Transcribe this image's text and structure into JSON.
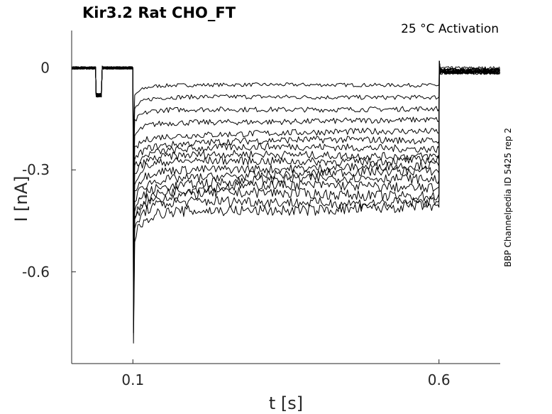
{
  "chart_data": {
    "type": "line",
    "title": "Kir3.2  Rat  CHO_FT",
    "annotation": "25 °C  Activation",
    "side_label": "BBP Channelpedia ID 5425 rep 2",
    "xlabel": "t [s]",
    "ylabel": "I [nA]",
    "xlim": [
      0.0,
      0.7
    ],
    "ylim": [
      -0.87,
      0.11
    ],
    "x_ticks": [
      0.1,
      0.6
    ],
    "x_tick_labels": [
      "0.1",
      "0.6"
    ],
    "y_ticks": [
      0,
      -0.3,
      -0.6
    ],
    "y_tick_labels": [
      "0",
      "-0.3",
      "-0.6"
    ],
    "grid": false,
    "legend": "none",
    "line_color": "#000000",
    "protocol": {
      "prepulse_start": 0.04,
      "prepulse_end": 0.05,
      "prepulse_current": -0.08,
      "step_start": 0.1,
      "step_end": 0.6
    },
    "series": [
      {
        "steady": -0.05,
        "peak": -0.22,
        "tail": 0.0
      },
      {
        "steady": -0.085,
        "peak": -0.27,
        "tail": -0.005
      },
      {
        "steady": -0.12,
        "peak": -0.31,
        "tail": -0.005
      },
      {
        "steady": -0.155,
        "peak": -0.36,
        "tail": -0.005
      },
      {
        "steady": -0.19,
        "peak": -0.4,
        "tail": -0.005
      },
      {
        "steady": -0.215,
        "peak": -0.44,
        "tail": -0.01
      },
      {
        "steady": -0.235,
        "peak": -0.48,
        "tail": -0.01
      },
      {
        "steady": -0.255,
        "peak": -0.52,
        "tail": -0.01
      },
      {
        "steady": -0.27,
        "peak": -0.56,
        "tail": -0.01
      },
      {
        "steady": -0.29,
        "peak": -0.6,
        "tail": -0.01
      },
      {
        "steady": -0.31,
        "peak": -0.63,
        "tail": -0.01
      },
      {
        "steady": -0.33,
        "peak": -0.67,
        "tail": -0.015
      },
      {
        "steady": -0.35,
        "peak": -0.71,
        "tail": -0.015
      },
      {
        "steady": -0.37,
        "peak": -0.74,
        "tail": -0.015
      },
      {
        "steady": -0.39,
        "peak": -0.78,
        "tail": -0.015
      },
      {
        "steady": -0.41,
        "peak": -0.81,
        "tail": -0.015
      }
    ]
  }
}
